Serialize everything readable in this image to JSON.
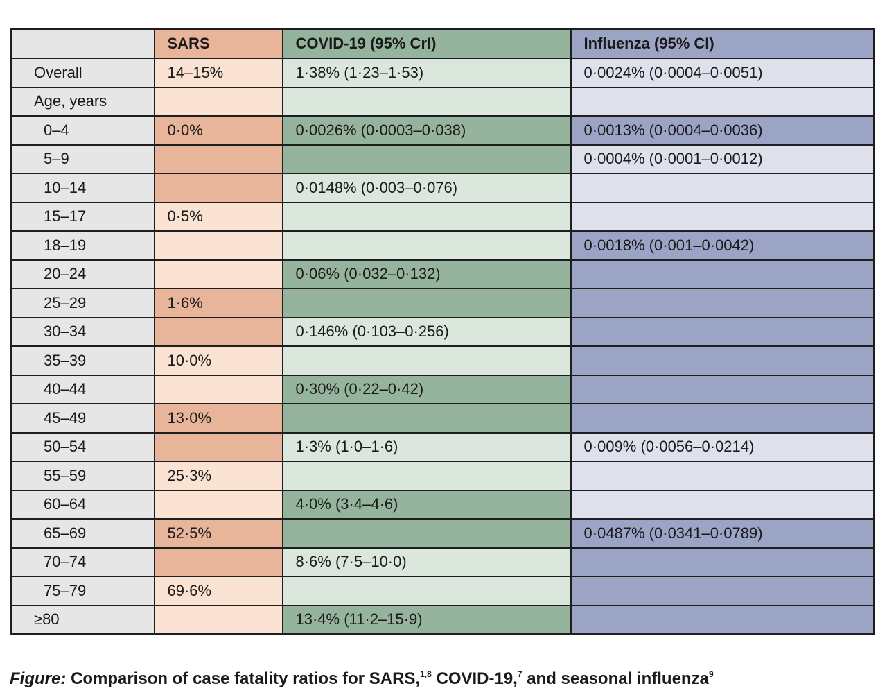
{
  "table": {
    "headers": [
      "",
      "SARS",
      "COVID-19 (95% CrI)",
      "Influenza (95% CI)"
    ],
    "rows": [
      {
        "age": "Overall",
        "sars": "14–15%",
        "covid": "1·38% (1·23–1·53)",
        "flu": "0·0024% (0·0004–0·0051)"
      },
      {
        "age": "Age, years",
        "sars": "",
        "covid": "",
        "flu": ""
      },
      {
        "age": "0–4",
        "sars": "0·0%",
        "covid": "0·0026% (0·0003–0·038)",
        "flu": "0·0013% (0·0004–0·0036)"
      },
      {
        "age": "5–9",
        "sars": "",
        "covid": "",
        "flu": "0·0004% (0·0001–0·0012)"
      },
      {
        "age": "10–14",
        "sars": "",
        "covid": "0·0148% (0·003–0·076)",
        "flu": ""
      },
      {
        "age": "15–17",
        "sars": "0·5%",
        "covid": "",
        "flu": ""
      },
      {
        "age": "18–19",
        "sars": "",
        "covid": "",
        "flu": "0·0018% (0·001–0·0042)"
      },
      {
        "age": "20–24",
        "sars": "",
        "covid": "0·06% (0·032–0·132)",
        "flu": ""
      },
      {
        "age": "25–29",
        "sars": "1·6%",
        "covid": "",
        "flu": ""
      },
      {
        "age": "30–34",
        "sars": "",
        "covid": "0·146% (0·103–0·256)",
        "flu": ""
      },
      {
        "age": "35–39",
        "sars": "10·0%",
        "covid": "",
        "flu": ""
      },
      {
        "age": "40–44",
        "sars": "",
        "covid": "0·30% (0·22–0·42)",
        "flu": ""
      },
      {
        "age": "45–49",
        "sars": "13·0%",
        "covid": "",
        "flu": ""
      },
      {
        "age": "50–54",
        "sars": "",
        "covid": "1·3% (1·0–1·6)",
        "flu": "0·009% (0·0056–0·0214)"
      },
      {
        "age": "55–59",
        "sars": "25·3%",
        "covid": "",
        "flu": ""
      },
      {
        "age": "60–64",
        "sars": "",
        "covid": "4·0% (3·4–4·6)",
        "flu": ""
      },
      {
        "age": "65–69",
        "sars": "52·5%",
        "covid": "",
        "flu": "0·0487% (0·0341–0·0789)"
      },
      {
        "age": "70–74",
        "sars": "",
        "covid": "8·6% (7·5–10·0)",
        "flu": ""
      },
      {
        "age": "75–79",
        "sars": "69·6%",
        "covid": "",
        "flu": ""
      },
      {
        "age": "≥80",
        "sars": "",
        "covid": "13·4% (11·2–15·9)",
        "flu": ""
      }
    ]
  },
  "caption": {
    "lead": "Figure:",
    "text_1": " Comparison of case fatality ratios for SARS,",
    "ref_1": "1,8",
    "text_2": " COVID-19,",
    "ref_2": "7",
    "text_3": " and seasonal influenza",
    "ref_3": "9"
  },
  "colors": {
    "sars_dark": "#e8b49a",
    "sars_light": "#fbe3d4",
    "covid_dark": "#96b49d",
    "covid_light": "#dbe6dc",
    "flu_dark": "#9ba4c5",
    "flu_light": "#dee1ec",
    "age_column": "#e6e6e6",
    "border": "#1e1e1e"
  }
}
